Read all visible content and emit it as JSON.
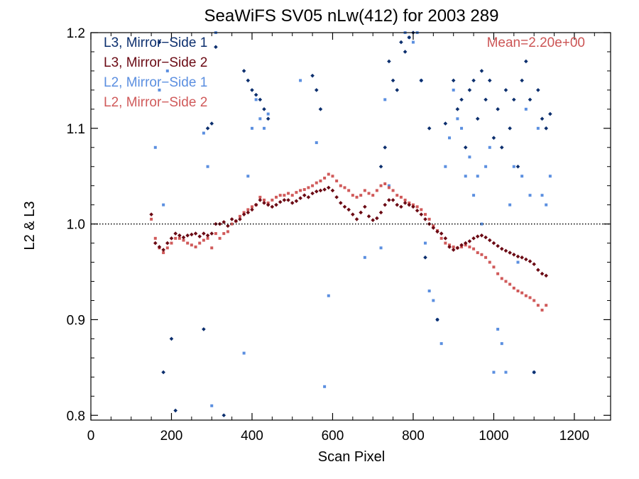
{
  "chart_data": {
    "type": "scatter",
    "title": "SeaWiFS SV05 nLw(412) for 2003 289",
    "xlabel": "Scan Pixel",
    "ylabel": "L2 & L3",
    "xlim": [
      0,
      1290
    ],
    "ylim": [
      0.795,
      1.2
    ],
    "xticks": [
      0,
      200,
      400,
      600,
      800,
      1000,
      1200
    ],
    "xtick_labels": [
      "0",
      "200",
      "400",
      "600",
      "800",
      "1000",
      "1200"
    ],
    "yticks": [
      0.8,
      0.9,
      1.0,
      1.1,
      1.2
    ],
    "ytick_labels": [
      "0.8",
      "0.9",
      "1.0",
      "1.1",
      "1.2"
    ],
    "reference_line": 1.0,
    "legend_position": "top-left",
    "annotation": "Mean=2.20e+00",
    "annotation_color": "#cc5555",
    "series": [
      {
        "name": "L3, Mirror−Side 1",
        "color": "#0c2f6e",
        "marker": "diamond",
        "x": [
          170,
          180,
          200,
          210,
          280,
          290,
          300,
          310,
          330,
          380,
          390,
          400,
          410,
          420,
          430,
          440,
          550,
          560,
          570,
          720,
          730,
          740,
          750,
          760,
          770,
          780,
          790,
          800,
          820,
          830,
          840,
          860,
          880,
          900,
          910,
          920,
          930,
          940,
          950,
          960,
          970,
          980,
          990,
          1000,
          1010,
          1020,
          1030,
          1040,
          1050,
          1060,
          1070,
          1080,
          1090,
          1100,
          1110,
          1120,
          1130,
          1140
        ],
        "values": [
          1.19,
          0.845,
          0.88,
          0.805,
          0.89,
          1.1,
          1.105,
          1.185,
          0.8,
          1.16,
          1.15,
          1.14,
          1.135,
          1.13,
          1.12,
          1.11,
          1.155,
          1.14,
          1.12,
          1.06,
          1.08,
          1.17,
          1.15,
          1.14,
          1.19,
          1.18,
          1.195,
          1.2,
          1.15,
          0.965,
          1.1,
          0.9,
          1.105,
          1.15,
          1.12,
          1.13,
          1.08,
          1.14,
          1.15,
          1.11,
          1.16,
          1.13,
          1.15,
          1.09,
          1.12,
          1.08,
          1.14,
          1.1,
          1.13,
          1.06,
          1.15,
          1.17,
          1.13,
          0.845,
          1.14,
          1.11,
          1.1,
          1.115
        ]
      },
      {
        "name": "L3, Mirror−Side 2",
        "color": "#6b0a14",
        "marker": "diamond",
        "x": [
          150,
          160,
          170,
          180,
          190,
          200,
          210,
          220,
          230,
          240,
          250,
          260,
          270,
          280,
          290,
          300,
          310,
          320,
          330,
          340,
          350,
          360,
          370,
          380,
          390,
          400,
          410,
          420,
          430,
          440,
          450,
          460,
          470,
          480,
          490,
          500,
          510,
          520,
          530,
          540,
          550,
          560,
          570,
          580,
          590,
          600,
          610,
          620,
          630,
          640,
          650,
          660,
          670,
          680,
          690,
          700,
          710,
          720,
          730,
          740,
          750,
          760,
          770,
          780,
          790,
          800,
          810,
          820,
          830,
          840,
          850,
          860,
          870,
          880,
          890,
          900,
          910,
          920,
          930,
          940,
          950,
          960,
          970,
          980,
          990,
          1000,
          1010,
          1020,
          1030,
          1040,
          1050,
          1060,
          1070,
          1080,
          1090,
          1100,
          1110,
          1120,
          1130
        ],
        "values": [
          1.01,
          0.98,
          0.976,
          0.973,
          0.98,
          0.985,
          0.99,
          0.988,
          0.986,
          0.988,
          0.989,
          0.99,
          0.987,
          0.99,
          0.988,
          0.99,
          1.0,
          1.0,
          1.002,
          0.998,
          1.005,
          1.003,
          1.005,
          1.01,
          1.012,
          1.015,
          1.02,
          1.025,
          1.022,
          1.02,
          1.018,
          1.02,
          1.023,
          1.025,
          1.025,
          1.022,
          1.024,
          1.027,
          1.03,
          1.028,
          1.032,
          1.034,
          1.035,
          1.036,
          1.038,
          1.035,
          1.028,
          1.022,
          1.018,
          1.015,
          1.01,
          1.005,
          1.012,
          1.018,
          1.008,
          1.004,
          1.006,
          1.012,
          1.02,
          1.025,
          1.025,
          1.02,
          1.018,
          1.022,
          1.02,
          1.018,
          1.014,
          1.01,
          1.005,
          1.0,
          0.996,
          0.992,
          0.99,
          0.985,
          0.976,
          0.973,
          0.975,
          0.978,
          0.98,
          0.982,
          0.985,
          0.987,
          0.988,
          0.986,
          0.983,
          0.98,
          0.977,
          0.974,
          0.972,
          0.97,
          0.968,
          0.966,
          0.965,
          0.963,
          0.961,
          0.958,
          0.952,
          0.948,
          0.946
        ]
      },
      {
        "name": "L2, Mirror−Side 1",
        "color": "#5b8fe0",
        "marker": "square",
        "x": [
          160,
          170,
          180,
          190,
          280,
          290,
          300,
          310,
          380,
          390,
          400,
          410,
          420,
          430,
          440,
          520,
          560,
          580,
          590,
          680,
          720,
          730,
          740,
          780,
          790,
          800,
          810,
          820,
          830,
          840,
          850,
          860,
          870,
          880,
          890,
          900,
          910,
          920,
          930,
          940,
          950,
          960,
          970,
          980,
          990,
          1000,
          1010,
          1020,
          1030,
          1040,
          1050,
          1060,
          1070,
          1080,
          1090,
          1100,
          1110,
          1120,
          1130,
          1140
        ],
        "values": [
          1.08,
          1.14,
          1.02,
          1.16,
          1.095,
          1.06,
          0.81,
          1.2,
          0.865,
          1.05,
          1.1,
          1.13,
          1.11,
          1.1,
          1.115,
          1.15,
          1.085,
          0.83,
          0.925,
          0.965,
          0.975,
          1.13,
          1.04,
          1.2,
          1.195,
          1.19,
          1.2,
          1.15,
          0.98,
          0.93,
          0.92,
          0.9,
          0.875,
          1.06,
          1.09,
          1.14,
          1.11,
          1.1,
          1.05,
          1.07,
          1.03,
          1.05,
          1.0,
          1.06,
          1.08,
          0.845,
          0.89,
          0.875,
          0.845,
          1.02,
          1.06,
          0.96,
          1.05,
          1.12,
          1.03,
          0.845,
          1.1,
          1.03,
          1.02,
          1.05
        ]
      },
      {
        "name": "L2, Mirror−Side 2",
        "color": "#d05a5a",
        "marker": "square",
        "x": [
          150,
          160,
          170,
          180,
          190,
          200,
          210,
          220,
          230,
          240,
          250,
          260,
          270,
          280,
          290,
          300,
          310,
          320,
          330,
          340,
          350,
          360,
          370,
          380,
          390,
          400,
          410,
          420,
          430,
          440,
          450,
          460,
          470,
          480,
          490,
          500,
          510,
          520,
          530,
          540,
          550,
          560,
          570,
          580,
          590,
          600,
          610,
          620,
          630,
          640,
          650,
          660,
          670,
          680,
          690,
          700,
          710,
          720,
          730,
          740,
          750,
          760,
          770,
          780,
          790,
          800,
          810,
          820,
          830,
          840,
          850,
          860,
          870,
          880,
          890,
          900,
          910,
          920,
          930,
          940,
          950,
          960,
          970,
          980,
          990,
          1000,
          1010,
          1020,
          1030,
          1040,
          1050,
          1060,
          1070,
          1080,
          1090,
          1100,
          1110,
          1120,
          1130
        ],
        "values": [
          1.005,
          0.985,
          0.975,
          0.97,
          0.975,
          0.98,
          0.985,
          0.985,
          0.983,
          0.98,
          0.978,
          0.976,
          0.98,
          0.983,
          0.985,
          0.975,
          0.99,
          0.985,
          0.99,
          0.992,
          1.0,
          1.003,
          1.008,
          1.012,
          1.015,
          1.018,
          1.02,
          1.028,
          1.025,
          1.022,
          1.025,
          1.028,
          1.03,
          1.03,
          1.032,
          1.03,
          1.033,
          1.035,
          1.036,
          1.038,
          1.04,
          1.043,
          1.045,
          1.048,
          1.052,
          1.05,
          1.045,
          1.04,
          1.038,
          1.035,
          1.03,
          1.028,
          1.03,
          1.035,
          1.032,
          1.03,
          1.035,
          1.04,
          1.042,
          1.038,
          1.035,
          1.03,
          1.028,
          1.025,
          1.022,
          1.02,
          1.018,
          1.015,
          1.01,
          1.005,
          0.998,
          0.993,
          0.985,
          0.98,
          0.978,
          0.976,
          0.975,
          0.976,
          0.978,
          0.976,
          0.974,
          0.97,
          0.968,
          0.965,
          0.96,
          0.955,
          0.948,
          0.943,
          0.94,
          0.937,
          0.933,
          0.93,
          0.928,
          0.925,
          0.923,
          0.92,
          0.915,
          0.91,
          0.915
        ]
      }
    ]
  }
}
